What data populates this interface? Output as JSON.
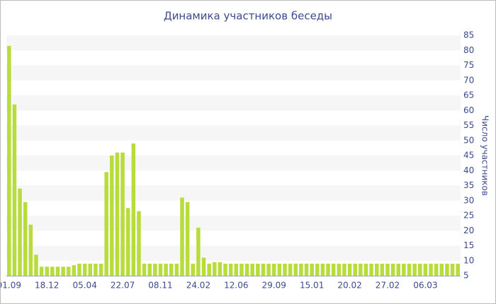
{
  "chart_data": {
    "type": "bar",
    "title": "Динамика участников беседы",
    "y_label": "Число участников",
    "categories": [
      "01.09",
      null,
      null,
      null,
      null,
      null,
      null,
      "18.12",
      null,
      null,
      null,
      null,
      null,
      null,
      "05.04",
      null,
      null,
      null,
      null,
      null,
      null,
      "22.07",
      null,
      null,
      null,
      null,
      null,
      null,
      "08.11",
      null,
      null,
      null,
      null,
      null,
      null,
      "24.02",
      null,
      null,
      null,
      null,
      null,
      null,
      "12.06",
      null,
      null,
      null,
      null,
      null,
      null,
      "29.09",
      null,
      null,
      null,
      null,
      null,
      null,
      "15.01",
      null,
      null,
      null,
      null,
      null,
      null,
      "20.02",
      null,
      null,
      null,
      null,
      null,
      null,
      "27.02",
      null,
      null,
      null,
      null,
      null,
      null,
      "06.03",
      null,
      null,
      null,
      null,
      null,
      null
    ],
    "values": [
      81.5,
      62,
      34,
      29.5,
      22,
      12,
      8,
      8,
      8,
      8,
      8,
      8,
      8.5,
      9,
      9,
      9,
      9,
      9,
      39.5,
      45,
      46,
      46,
      27.5,
      49,
      26.5,
      9,
      9,
      9,
      9,
      9,
      9,
      9,
      31,
      29.5,
      9,
      21,
      11,
      9,
      9.5,
      9.5,
      9,
      9,
      9,
      9,
      9,
      9,
      9,
      9,
      9,
      9,
      9,
      9,
      9,
      9,
      9,
      9,
      9,
      9,
      9,
      9,
      9,
      9,
      9,
      9,
      9,
      9,
      9,
      9,
      9,
      9,
      9,
      9,
      9,
      9,
      9,
      9,
      9,
      9,
      9,
      9,
      9,
      9,
      9,
      9
    ],
    "color": "#b7dc3c",
    "ylim": [
      5,
      85
    ],
    "yticks": [
      5,
      10,
      15,
      20,
      25,
      30,
      35,
      40,
      45,
      50,
      55,
      60,
      65,
      70,
      75,
      80,
      85
    ],
    "grid": true
  }
}
